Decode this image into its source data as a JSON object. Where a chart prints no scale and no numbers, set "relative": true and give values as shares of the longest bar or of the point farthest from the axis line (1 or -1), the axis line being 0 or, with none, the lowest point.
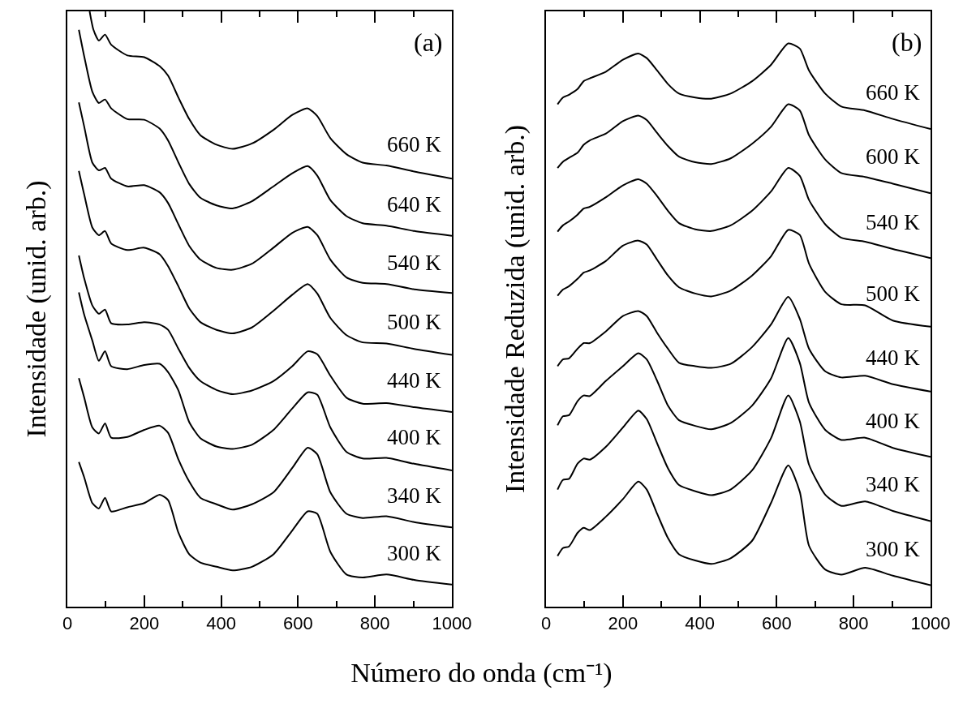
{
  "chart_data": [
    {
      "type": "line",
      "relative": true,
      "xlabel": "Número do onda (cm⁻¹)",
      "ylabel": "Intensidade (unid. arb.)",
      "annotations": [
        "(a)"
      ],
      "xlim": [
        0,
        1000
      ],
      "xticks": [
        0,
        {
          "value": 100,
          "label": null
        },
        200,
        {
          "value": 300,
          "label": null
        },
        400,
        {
          "value": 500,
          "label": null
        },
        600,
        {
          "value": 700,
          "label": null
        },
        800,
        {
          "value": 900,
          "label": null
        },
        1000
      ],
      "tick_labels": "x",
      "grid": false,
      "legend": false,
      "series": [
        {
          "name": "660 K",
          "color": "#000000",
          "x": [
            58,
            68,
            82,
            98,
            114,
            156,
            200,
            240,
            262,
            289,
            317,
            346,
            388,
            430,
            480,
            536,
            585,
            625,
            650,
            684,
            726,
            768,
            830,
            902,
            1000
          ],
          "values": [
            1,
            0.969,
            0.951,
            0.961,
            0.944,
            0.926,
            0.923,
            0.908,
            0.892,
            0.855,
            0.819,
            0.792,
            0.776,
            0.769,
            0.778,
            0.801,
            0.826,
            0.837,
            0.824,
            0.787,
            0.76,
            0.746,
            0.741,
            0.731,
            0.719
          ]
        },
        {
          "name": "640 K",
          "color": "#000000",
          "x": [
            30,
            44,
            65,
            82,
            98,
            114,
            156,
            200,
            240,
            262,
            289,
            317,
            346,
            388,
            430,
            480,
            536,
            585,
            625,
            650,
            684,
            726,
            768,
            830,
            902,
            1000
          ],
          "values": [
            0.969,
            0.924,
            0.865,
            0.846,
            0.852,
            0.837,
            0.819,
            0.818,
            0.803,
            0.783,
            0.746,
            0.71,
            0.687,
            0.674,
            0.669,
            0.681,
            0.706,
            0.728,
            0.74,
            0.724,
            0.683,
            0.656,
            0.644,
            0.64,
            0.631,
            0.623
          ]
        },
        {
          "name": "540 K",
          "color": "#000000",
          "x": [
            30,
            44,
            65,
            82,
            98,
            114,
            156,
            200,
            240,
            262,
            289,
            317,
            346,
            388,
            430,
            480,
            536,
            585,
            625,
            650,
            684,
            726,
            768,
            830,
            902,
            1000
          ],
          "values": [
            0.847,
            0.806,
            0.746,
            0.733,
            0.737,
            0.719,
            0.706,
            0.708,
            0.696,
            0.678,
            0.642,
            0.606,
            0.583,
            0.569,
            0.566,
            0.576,
            0.603,
            0.628,
            0.638,
            0.624,
            0.583,
            0.553,
            0.544,
            0.542,
            0.533,
            0.527
          ]
        },
        {
          "name": "500 K",
          "color": "#000000",
          "x": [
            30,
            44,
            65,
            82,
            98,
            114,
            156,
            200,
            240,
            262,
            289,
            317,
            346,
            388,
            430,
            480,
            536,
            585,
            625,
            650,
            684,
            726,
            768,
            830,
            902,
            1000
          ],
          "values": [
            0.732,
            0.692,
            0.637,
            0.624,
            0.631,
            0.61,
            0.599,
            0.603,
            0.592,
            0.572,
            0.538,
            0.501,
            0.478,
            0.465,
            0.459,
            0.469,
            0.497,
            0.524,
            0.542,
            0.526,
            0.485,
            0.456,
            0.444,
            0.442,
            0.433,
            0.423
          ]
        },
        {
          "name": "440 K",
          "color": "#000000",
          "x": [
            30,
            44,
            65,
            82,
            98,
            114,
            156,
            200,
            240,
            262,
            289,
            317,
            346,
            388,
            430,
            480,
            536,
            585,
            625,
            650,
            684,
            726,
            768,
            830,
            902,
            1000
          ],
          "values": [
            0.59,
            0.551,
            0.506,
            0.492,
            0.499,
            0.476,
            0.474,
            0.478,
            0.474,
            0.465,
            0.433,
            0.401,
            0.379,
            0.364,
            0.357,
            0.363,
            0.379,
            0.404,
            0.429,
            0.424,
            0.388,
            0.351,
            0.341,
            0.342,
            0.335,
            0.327
          ]
        },
        {
          "name": "400 K",
          "color": "#000000",
          "x": [
            30,
            44,
            65,
            82,
            98,
            114,
            156,
            200,
            240,
            262,
            289,
            317,
            346,
            388,
            430,
            480,
            536,
            585,
            625,
            650,
            684,
            726,
            768,
            830,
            902,
            1000
          ],
          "values": [
            0.528,
            0.49,
            0.447,
            0.413,
            0.429,
            0.404,
            0.399,
            0.406,
            0.408,
            0.394,
            0.363,
            0.31,
            0.283,
            0.269,
            0.265,
            0.272,
            0.297,
            0.333,
            0.36,
            0.356,
            0.301,
            0.26,
            0.249,
            0.25,
            0.24,
            0.229
          ]
        },
        {
          "name": "340 K",
          "color": "#000000",
          "x": [
            30,
            44,
            65,
            82,
            98,
            114,
            156,
            200,
            240,
            262,
            289,
            317,
            346,
            388,
            430,
            480,
            536,
            585,
            625,
            650,
            684,
            726,
            768,
            830,
            902,
            1000
          ],
          "values": [
            0.384,
            0.351,
            0.301,
            0.291,
            0.308,
            0.284,
            0.285,
            0.297,
            0.304,
            0.292,
            0.247,
            0.21,
            0.183,
            0.172,
            0.163,
            0.172,
            0.192,
            0.233,
            0.267,
            0.256,
            0.192,
            0.156,
            0.149,
            0.152,
            0.142,
            0.133
          ]
        },
        {
          "name": "300 K",
          "color": "#000000",
          "x": [
            30,
            44,
            65,
            82,
            98,
            114,
            156,
            200,
            240,
            262,
            289,
            317,
            346,
            388,
            430,
            480,
            536,
            585,
            625,
            650,
            684,
            726,
            768,
            830,
            902,
            1000
          ],
          "values": [
            0.243,
            0.217,
            0.174,
            0.165,
            0.183,
            0.16,
            0.167,
            0.174,
            0.188,
            0.179,
            0.124,
            0.088,
            0.074,
            0.067,
            0.061,
            0.067,
            0.088,
            0.128,
            0.16,
            0.156,
            0.092,
            0.054,
            0.049,
            0.054,
            0.045,
            0.037
          ]
        }
      ]
    },
    {
      "type": "line",
      "relative": true,
      "ylabel": "Intensidade Reduzida (unid. arb.)",
      "annotations": [
        "(b)"
      ],
      "xlim": [
        0,
        1000
      ],
      "xticks": [
        0,
        {
          "value": 100,
          "label": null
        },
        200,
        {
          "value": 300,
          "label": null
        },
        400,
        {
          "value": 500,
          "label": null
        },
        600,
        {
          "value": 700,
          "label": null
        },
        800,
        {
          "value": 900,
          "label": null
        },
        1000
      ],
      "tick_labels": "x",
      "grid": false,
      "legend": false,
      "series": [
        {
          "name": "660 K",
          "color": "#000000",
          "x": [
            30,
            44,
            60,
            82,
            98,
            114,
            156,
            200,
            240,
            262,
            289,
            317,
            346,
            388,
            430,
            480,
            536,
            585,
            630,
            660,
            684,
            726,
            768,
            830,
            902,
            1000
          ],
          "values": [
            0.892,
            0.904,
            0.909,
            0.919,
            0.933,
            0.938,
            0.95,
            0.971,
            0.982,
            0.974,
            0.952,
            0.928,
            0.911,
            0.904,
            0.902,
            0.911,
            0.933,
            0.962,
            1,
            0.991,
            0.952,
            0.911,
            0.888,
            0.881,
            0.866,
            0.848
          ]
        },
        {
          "name": "600 K",
          "color": "#000000",
          "x": [
            30,
            44,
            60,
            82,
            98,
            114,
            156,
            200,
            240,
            262,
            289,
            317,
            346,
            388,
            430,
            480,
            536,
            585,
            630,
            660,
            684,
            726,
            768,
            830,
            902,
            1000
          ],
          "values": [
            0.779,
            0.79,
            0.797,
            0.806,
            0.82,
            0.828,
            0.84,
            0.862,
            0.872,
            0.864,
            0.841,
            0.818,
            0.799,
            0.789,
            0.786,
            0.796,
            0.822,
            0.852,
            0.892,
            0.881,
            0.837,
            0.794,
            0.77,
            0.763,
            0.751,
            0.734
          ]
        },
        {
          "name": "540 K",
          "color": "#000000",
          "x": [
            30,
            44,
            60,
            82,
            98,
            114,
            156,
            200,
            240,
            262,
            289,
            317,
            346,
            388,
            430,
            480,
            536,
            585,
            630,
            660,
            684,
            726,
            768,
            830,
            902,
            1000
          ],
          "values": [
            0.666,
            0.677,
            0.684,
            0.696,
            0.707,
            0.71,
            0.727,
            0.748,
            0.759,
            0.751,
            0.729,
            0.703,
            0.681,
            0.67,
            0.667,
            0.677,
            0.703,
            0.737,
            0.779,
            0.765,
            0.722,
            0.679,
            0.655,
            0.648,
            0.635,
            0.619
          ]
        },
        {
          "name": "500 K",
          "color": "#000000",
          "x": [
            30,
            44,
            60,
            82,
            98,
            114,
            156,
            200,
            240,
            262,
            289,
            317,
            346,
            388,
            430,
            480,
            536,
            585,
            630,
            660,
            684,
            726,
            768,
            830,
            902,
            1000
          ],
          "values": [
            0.552,
            0.563,
            0.569,
            0.582,
            0.593,
            0.597,
            0.614,
            0.641,
            0.65,
            0.643,
            0.616,
            0.588,
            0.567,
            0.556,
            0.551,
            0.561,
            0.588,
            0.622,
            0.669,
            0.66,
            0.609,
            0.559,
            0.537,
            0.535,
            0.508,
            0.497
          ]
        },
        {
          "name": "440 K",
          "color": "#000000",
          "x": [
            30,
            44,
            60,
            82,
            98,
            114,
            156,
            200,
            240,
            262,
            289,
            317,
            346,
            388,
            430,
            480,
            536,
            585,
            630,
            660,
            684,
            726,
            768,
            830,
            902,
            1000
          ],
          "values": [
            0.427,
            0.439,
            0.441,
            0.458,
            0.468,
            0.468,
            0.489,
            0.516,
            0.525,
            0.516,
            0.486,
            0.458,
            0.433,
            0.427,
            0.424,
            0.431,
            0.461,
            0.501,
            0.55,
            0.511,
            0.458,
            0.418,
            0.407,
            0.41,
            0.395,
            0.382
          ]
        },
        {
          "name": "400 K",
          "color": "#000000",
          "x": [
            30,
            44,
            60,
            82,
            98,
            114,
            156,
            200,
            240,
            262,
            289,
            317,
            346,
            388,
            430,
            480,
            536,
            585,
            630,
            660,
            684,
            726,
            768,
            830,
            902,
            1000
          ],
          "values": [
            0.322,
            0.338,
            0.34,
            0.365,
            0.375,
            0.374,
            0.401,
            0.427,
            0.45,
            0.439,
            0.401,
            0.357,
            0.331,
            0.321,
            0.315,
            0.326,
            0.357,
            0.405,
            0.477,
            0.433,
            0.362,
            0.314,
            0.296,
            0.3,
            0.282,
            0.266
          ]
        },
        {
          "name": "340 K",
          "color": "#000000",
          "x": [
            30,
            44,
            60,
            82,
            98,
            114,
            156,
            200,
            240,
            262,
            289,
            317,
            346,
            388,
            430,
            480,
            536,
            585,
            630,
            660,
            684,
            726,
            768,
            830,
            902,
            1000
          ],
          "values": [
            0.208,
            0.225,
            0.227,
            0.254,
            0.263,
            0.261,
            0.284,
            0.318,
            0.348,
            0.333,
            0.29,
            0.246,
            0.216,
            0.205,
            0.198,
            0.208,
            0.242,
            0.299,
            0.375,
            0.329,
            0.252,
            0.199,
            0.179,
            0.187,
            0.17,
            0.152
          ]
        },
        {
          "name": "300 K",
          "color": "#000000",
          "x": [
            30,
            44,
            60,
            82,
            98,
            114,
            156,
            200,
            240,
            262,
            289,
            317,
            346,
            388,
            430,
            480,
            536,
            585,
            630,
            660,
            684,
            726,
            768,
            830,
            902,
            1000
          ],
          "values": [
            0.09,
            0.104,
            0.107,
            0.131,
            0.14,
            0.136,
            0.16,
            0.191,
            0.222,
            0.208,
            0.165,
            0.122,
            0.093,
            0.082,
            0.076,
            0.086,
            0.117,
            0.184,
            0.251,
            0.204,
            0.108,
            0.066,
            0.057,
            0.069,
            0.055,
            0.038
          ]
        }
      ]
    }
  ]
}
